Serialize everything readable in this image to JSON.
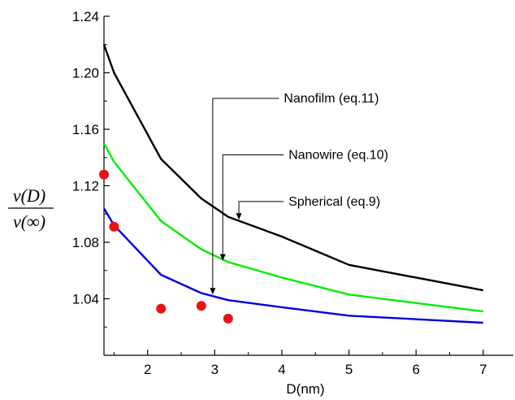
{
  "chart_data": {
    "type": "line",
    "title": "",
    "xlabel": "D(nm)",
    "ylabel": {
      "numerator": "ν(D)",
      "denominator": "ν(∞)"
    },
    "xlim": [
      1.35,
      7.45
    ],
    "ylim": [
      1.0,
      1.24
    ],
    "xticks": [
      "2",
      "3",
      "4",
      "5",
      "6",
      "7"
    ],
    "yticks": [
      "1.04",
      "1.08",
      "1.12",
      "1.16",
      "1.20",
      "1.24"
    ],
    "grid": false,
    "series": [
      {
        "key": "spherical",
        "color": "#000000",
        "x": [
          1.35,
          1.5,
          2.2,
          2.8,
          3.2,
          4.0,
          5.0,
          7.0
        ],
        "y": [
          1.22,
          1.2,
          1.139,
          1.111,
          1.098,
          1.084,
          1.064,
          1.046
        ]
      },
      {
        "key": "nanowire",
        "color": "#00ee00",
        "x": [
          1.35,
          1.5,
          2.2,
          2.8,
          3.2,
          4.0,
          5.0,
          7.0
        ],
        "y": [
          1.15,
          1.137,
          1.095,
          1.075,
          1.066,
          1.055,
          1.043,
          1.031
        ]
      },
      {
        "key": "nanofilm",
        "color": "#0000dd",
        "x": [
          1.35,
          1.5,
          2.2,
          2.8,
          3.2,
          4.0,
          5.0,
          7.0
        ],
        "y": [
          1.104,
          1.092,
          1.057,
          1.044,
          1.039,
          1.034,
          1.028,
          1.023
        ]
      }
    ],
    "scatter": {
      "color": "#ee1111",
      "points": [
        {
          "x": 1.35,
          "y": 1.128
        },
        {
          "x": 1.5,
          "y": 1.091
        },
        {
          "x": 2.2,
          "y": 1.033
        },
        {
          "x": 2.8,
          "y": 1.035
        },
        {
          "x": 3.2,
          "y": 1.026
        }
      ]
    },
    "annotations": [
      {
        "text": "Nanofilm (eq.11)",
        "target": {
          "x": 2.97,
          "y": 1.043
        },
        "text_anchor": {
          "x": 4.03,
          "y": 1.179
        }
      },
      {
        "text": "Nanowire (eq.10)",
        "target": {
          "x": 3.12,
          "y": 1.067
        },
        "text_anchor": {
          "x": 4.1,
          "y": 1.139
        }
      },
      {
        "text": "Spherical (eq.9)",
        "target": {
          "x": 3.36,
          "y": 1.096
        },
        "text_anchor": {
          "x": 4.1,
          "y": 1.106
        }
      }
    ]
  }
}
